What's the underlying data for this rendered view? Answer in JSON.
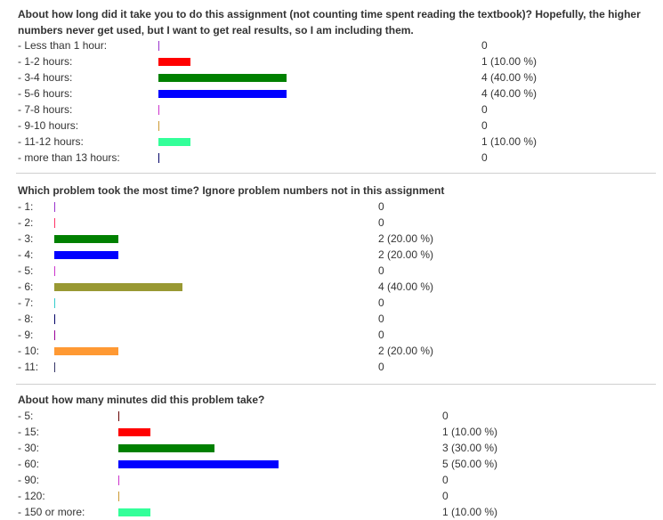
{
  "sections": [
    {
      "question": "About how long did it take you to do this assignment (not counting time spent reading the textbook)? Hopefully, the higher numbers never get used, but I want to get real results, so I am including them.",
      "rows": [
        {
          "label": "- Less than 1 hour:",
          "count": 0,
          "fraction": 0,
          "result": "0",
          "color": "#9932cc"
        },
        {
          "label": "- 1-2 hours:",
          "count": 1,
          "fraction": 0.1,
          "result": "1 (10.00 %)",
          "color": "#ff0000"
        },
        {
          "label": "- 3-4 hours:",
          "count": 4,
          "fraction": 0.4,
          "result": "4 (40.00 %)",
          "color": "#008000"
        },
        {
          "label": "- 5-6 hours:",
          "count": 4,
          "fraction": 0.4,
          "result": "4 (40.00 %)",
          "color": "#0000ff"
        },
        {
          "label": "- 7-8 hours:",
          "count": 0,
          "fraction": 0,
          "result": "0",
          "color": "#cc33cc"
        },
        {
          "label": "- 9-10 hours:",
          "count": 0,
          "fraction": 0,
          "result": "0",
          "color": "#cc9933"
        },
        {
          "label": "- 11-12 hours:",
          "count": 1,
          "fraction": 0.1,
          "result": "1 (10.00 %)",
          "color": "#33ff99"
        },
        {
          "label": "- more than 13 hours:",
          "count": 0,
          "fraction": 0,
          "result": "0",
          "color": "#000066"
        }
      ]
    },
    {
      "question": "Which problem took the most time? Ignore problem numbers not in this assignment",
      "rows": [
        {
          "label": "- 1:",
          "count": 0,
          "fraction": 0,
          "result": "0",
          "color": "#9932cc"
        },
        {
          "label": "- 2:",
          "count": 0,
          "fraction": 0,
          "result": "0",
          "color": "#ff3366"
        },
        {
          "label": "- 3:",
          "count": 2,
          "fraction": 0.2,
          "result": "2 (20.00 %)",
          "color": "#008000"
        },
        {
          "label": "- 4:",
          "count": 2,
          "fraction": 0.2,
          "result": "2 (20.00 %)",
          "color": "#0000ff"
        },
        {
          "label": "- 5:",
          "count": 0,
          "fraction": 0,
          "result": "0",
          "color": "#cc33cc"
        },
        {
          "label": "- 6:",
          "count": 4,
          "fraction": 0.4,
          "result": "4 (40.00 %)",
          "color": "#999933"
        },
        {
          "label": "- 7:",
          "count": 0,
          "fraction": 0,
          "result": "0",
          "color": "#33cccc"
        },
        {
          "label": "- 8:",
          "count": 0,
          "fraction": 0,
          "result": "0",
          "color": "#000066"
        },
        {
          "label": "- 9:",
          "count": 0,
          "fraction": 0,
          "result": "0",
          "color": "#990099"
        },
        {
          "label": "- 10:",
          "count": 2,
          "fraction": 0.2,
          "result": "2 (20.00 %)",
          "color": "#ff9933"
        },
        {
          "label": "- 11:",
          "count": 0,
          "fraction": 0,
          "result": "0",
          "color": "#333366"
        }
      ]
    },
    {
      "question": "About how many minutes did this problem take?",
      "rows": [
        {
          "label": "- 5:",
          "count": 0,
          "fraction": 0,
          "result": "0",
          "color": "#660000"
        },
        {
          "label": "- 15:",
          "count": 1,
          "fraction": 0.1,
          "result": "1 (10.00 %)",
          "color": "#ff0000"
        },
        {
          "label": "- 30:",
          "count": 3,
          "fraction": 0.3,
          "result": "3 (30.00 %)",
          "color": "#008000"
        },
        {
          "label": "- 60:",
          "count": 5,
          "fraction": 0.5,
          "result": "5 (50.00 %)",
          "color": "#0000ff"
        },
        {
          "label": "- 90:",
          "count": 0,
          "fraction": 0,
          "result": "0",
          "color": "#cc33cc"
        },
        {
          "label": "- 120:",
          "count": 0,
          "fraction": 0,
          "result": "0",
          "color": "#cc9933"
        },
        {
          "label": "- 150 or more:",
          "count": 1,
          "fraction": 0.1,
          "result": "1 (10.00 %)",
          "color": "#33ff99"
        }
      ]
    }
  ]
}
